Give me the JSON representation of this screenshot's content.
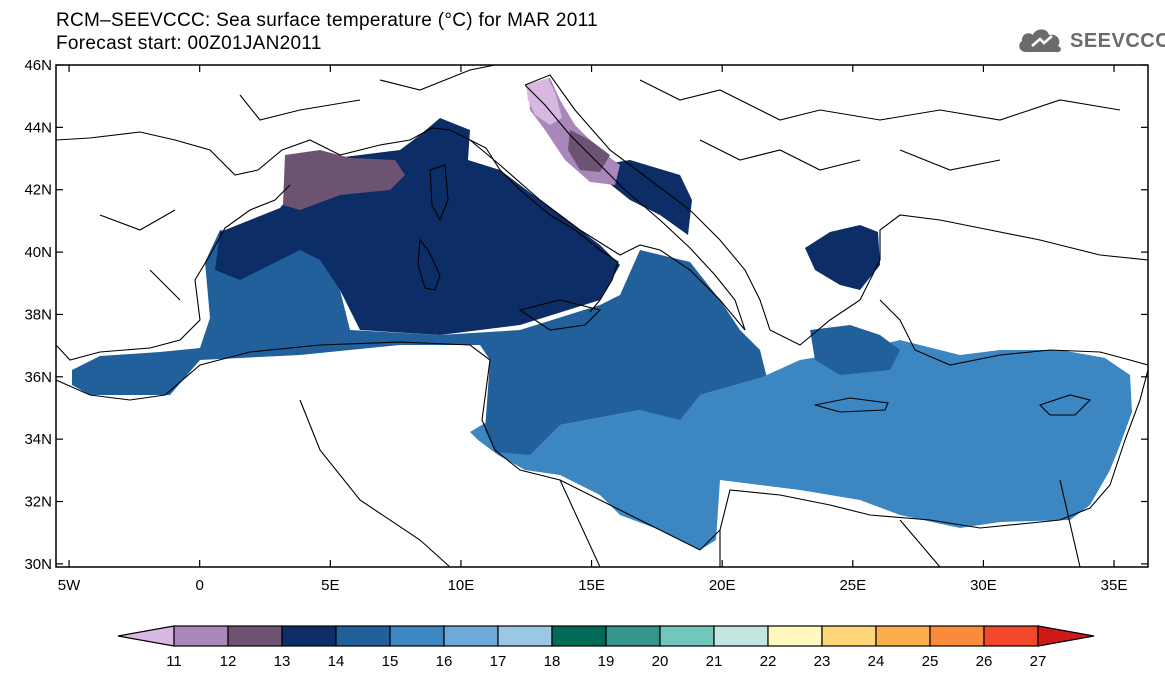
{
  "title": {
    "line1": "RCM–SEEVCCC: Sea surface temperature (°C) for MAR 2011",
    "line2": "Forecast start: 00Z01JAN2011"
  },
  "logo": {
    "text": "SEEVCCC",
    "icon": "cloud-icon"
  },
  "map": {
    "lon_labels": [
      "5W",
      "0",
      "5E",
      "10E",
      "15E",
      "20E",
      "25E",
      "30E",
      "35E"
    ],
    "lat_labels": [
      "46N",
      "44N",
      "42N",
      "40N",
      "38N",
      "36N",
      "34N",
      "32N",
      "30N"
    ],
    "extent": {
      "lon_min": -5.5,
      "lon_max": 36.3,
      "lat_min": 29.9,
      "lat_max": 46
    },
    "colors": {
      "land_line": "#000000",
      "t11": "#d8b8e0",
      "t12": "#a987ba",
      "t13": "#6d5372",
      "t14": "#0d2d66",
      "t15": "#22609c",
      "t16": "#3c86c2",
      "t17": "#6daad7"
    }
  },
  "colorbar": {
    "labels": [
      "11",
      "12",
      "13",
      "14",
      "15",
      "16",
      "17",
      "18",
      "19",
      "20",
      "21",
      "22",
      "23",
      "24",
      "25",
      "26",
      "27"
    ],
    "colors": [
      "#d9b8e3",
      "#a987ba",
      "#6d5372",
      "#0d2d66",
      "#22609c",
      "#3c86c2",
      "#6daad7",
      "#9cc7e4",
      "#006a56",
      "#339688",
      "#72c7bd",
      "#c4e6e2",
      "#fff8be",
      "#fed77a",
      "#fdae4a",
      "#fa8b3a",
      "#f2472b",
      "#cf1a1a"
    ]
  }
}
